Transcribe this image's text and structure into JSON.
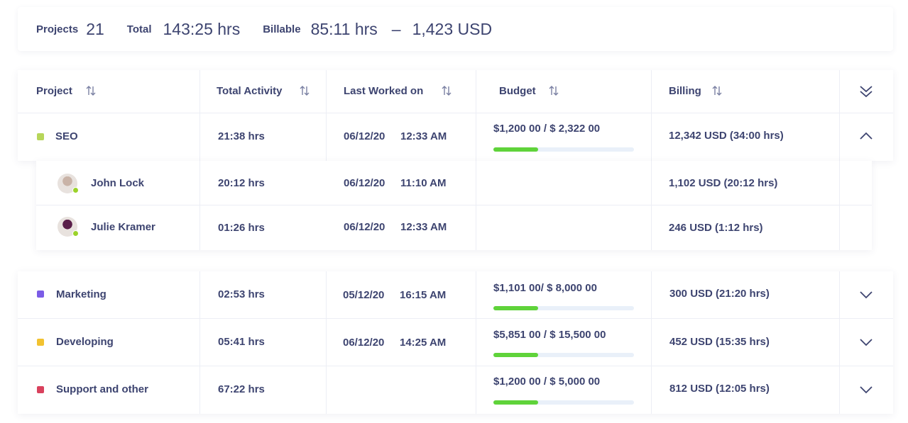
{
  "summary": {
    "projects_label": "Projects",
    "projects_value": "21",
    "total_label": "Total",
    "total_value": "143:25 hrs",
    "billable_label": "Billable",
    "billable_value": "85:11 hrs",
    "dash": "–",
    "billable_amount": "1,423 USD"
  },
  "headers": {
    "project": "Project",
    "total_activity": "Total Activity",
    "last_worked": "Last Worked on",
    "budget": "Budget",
    "billing": "Billing"
  },
  "icons": {
    "sort": "sort-arrows-icon",
    "collapse_all": "double-chevron-down-icon",
    "expand": "chevron-down-icon",
    "collapse": "chevron-up-icon"
  },
  "colors": {
    "text": "#3d4470",
    "progress": "#5fd33a",
    "progress_track": "#e9f0f9",
    "online": "#9bd22a"
  },
  "projects": [
    {
      "name": "SEO",
      "color": "#b7d65a",
      "activity": "21:38 hrs",
      "last_date": "06/12/20",
      "last_time": "12:33 AM",
      "budget": "$1,200 00 / $ 2,322 00",
      "budget_progress": 0.32,
      "billing": "12,342 USD (34:00 hrs)",
      "expanded": true
    },
    {
      "name": "Marketing",
      "color": "#7b5ce6",
      "activity": "02:53 hrs",
      "last_date": "05/12/20",
      "last_time": "16:15 AM",
      "budget": "$1,101 00/ $ 8,000 00",
      "budget_progress": 0.32,
      "billing": "300 USD (21:20 hrs)",
      "expanded": false
    },
    {
      "name": "Developing",
      "color": "#f2c230",
      "activity": "05:41 hrs",
      "last_date": "06/12/20",
      "last_time": "14:25 AM",
      "budget": "$5,851 00 / $ 15,500 00",
      "budget_progress": 0.32,
      "billing": "452 USD (15:35 hrs)",
      "expanded": false
    },
    {
      "name": "Support and other",
      "color": "#d9415d",
      "activity": "67:22 hrs",
      "last_date": "",
      "last_time": "",
      "budget": "$1,200 00 / $ 5,000 00",
      "budget_progress": 0.32,
      "billing": "812 USD (12:05 hrs)",
      "expanded": false
    }
  ],
  "members": [
    {
      "name": "John Lock",
      "activity": "20:12 hrs",
      "last_date": "06/12/20",
      "last_time": "11:10 AM",
      "billing": "1,102 USD (20:12 hrs)",
      "avatar_color": "#c9b3a7"
    },
    {
      "name": "Julie Kramer",
      "activity": "01:26 hrs",
      "last_date": "06/12/20",
      "last_time": "12:33 AM",
      "billing": "246 USD (1:12 hrs)",
      "avatar_color": "#5a1f4a"
    }
  ]
}
